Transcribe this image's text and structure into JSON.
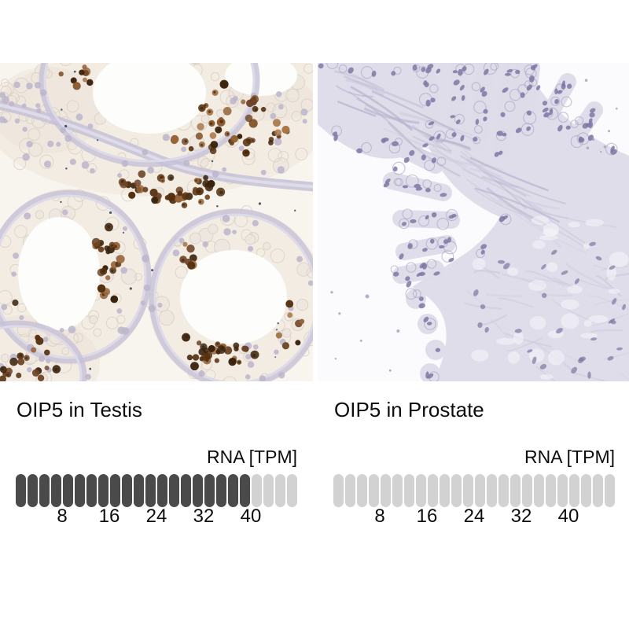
{
  "page": {
    "background_color": "#ffffff"
  },
  "panels": [
    {
      "id": "testis",
      "title": "OIP5 in Testis",
      "micrograph": {
        "kind": "immunohistochemistry",
        "tissue": "testis",
        "dab_positive": true,
        "background_color": "#f8f5ef",
        "cytoplasm_color": "#ece4d9",
        "cell_outline_color": "#d9cfc3",
        "wall_color": "#c5c1d7",
        "wall_highlight_color": "#e1deeb",
        "unstained_nucleus_color": "#bcb5cd",
        "brown_palette": [
          "#a87648",
          "#8a5a2e",
          "#6e4527",
          "#53300f",
          "#3a220c",
          "#96653a"
        ],
        "lumen_color": "#fdfdfb",
        "speck_color": "#26304c"
      },
      "bar": {
        "axis_label": "RNA [TPM]",
        "segments_total": 24,
        "segments_filled": 20,
        "filled_color": "#4a4a4a",
        "empty_color": "#d2d2d2",
        "ticks": [
          {
            "label": "8",
            "after_segment": 4
          },
          {
            "label": "16",
            "after_segment": 8
          },
          {
            "label": "24",
            "after_segment": 12
          },
          {
            "label": "32",
            "after_segment": 16
          },
          {
            "label": "40",
            "after_segment": 20
          }
        ]
      }
    },
    {
      "id": "prostate",
      "title": "OIP5 in Prostate",
      "micrograph": {
        "kind": "immunohistochemistry",
        "tissue": "prostate",
        "dab_positive": false,
        "background_color": "#fbfafc",
        "epithelium_color": "#dedbe9",
        "stroma_color": "#b9b4cf",
        "stroma_light_color": "#cdc9dd",
        "outline_color": "#aaa5c4",
        "nucleus_color": "#7d78a3",
        "mottle_color": "#f6f5f9",
        "debris_color": "#a29dbb"
      },
      "bar": {
        "axis_label": "RNA [TPM]",
        "segments_total": 24,
        "segments_filled": 0,
        "filled_color": "#4a4a4a",
        "empty_color": "#d2d2d2",
        "ticks": [
          {
            "label": "8",
            "after_segment": 4
          },
          {
            "label": "16",
            "after_segment": 8
          },
          {
            "label": "24",
            "after_segment": 12
          },
          {
            "label": "32",
            "after_segment": 16
          },
          {
            "label": "40",
            "after_segment": 20
          }
        ]
      }
    }
  ],
  "chart_data": [
    {
      "type": "bar",
      "title": "OIP5 in Testis",
      "axis_label": "RNA [TPM]",
      "unit": "TPM",
      "axis_ticks": [
        8,
        16,
        24,
        32,
        40
      ],
      "axis_range": [
        0,
        48
      ],
      "segments_total": 24,
      "segments_filled": 20,
      "tpm_per_segment": 2,
      "value_tpm": 40,
      "filled_color": "#4a4a4a",
      "empty_color": "#d2d2d2",
      "legend_position": "none",
      "grid": false
    },
    {
      "type": "bar",
      "title": "OIP5 in Prostate",
      "axis_label": "RNA [TPM]",
      "unit": "TPM",
      "axis_ticks": [
        8,
        16,
        24,
        32,
        40
      ],
      "axis_range": [
        0,
        48
      ],
      "segments_total": 24,
      "segments_filled": 0,
      "tpm_per_segment": 2,
      "value_tpm": 0,
      "filled_color": "#4a4a4a",
      "empty_color": "#d2d2d2",
      "legend_position": "none",
      "grid": false
    }
  ]
}
